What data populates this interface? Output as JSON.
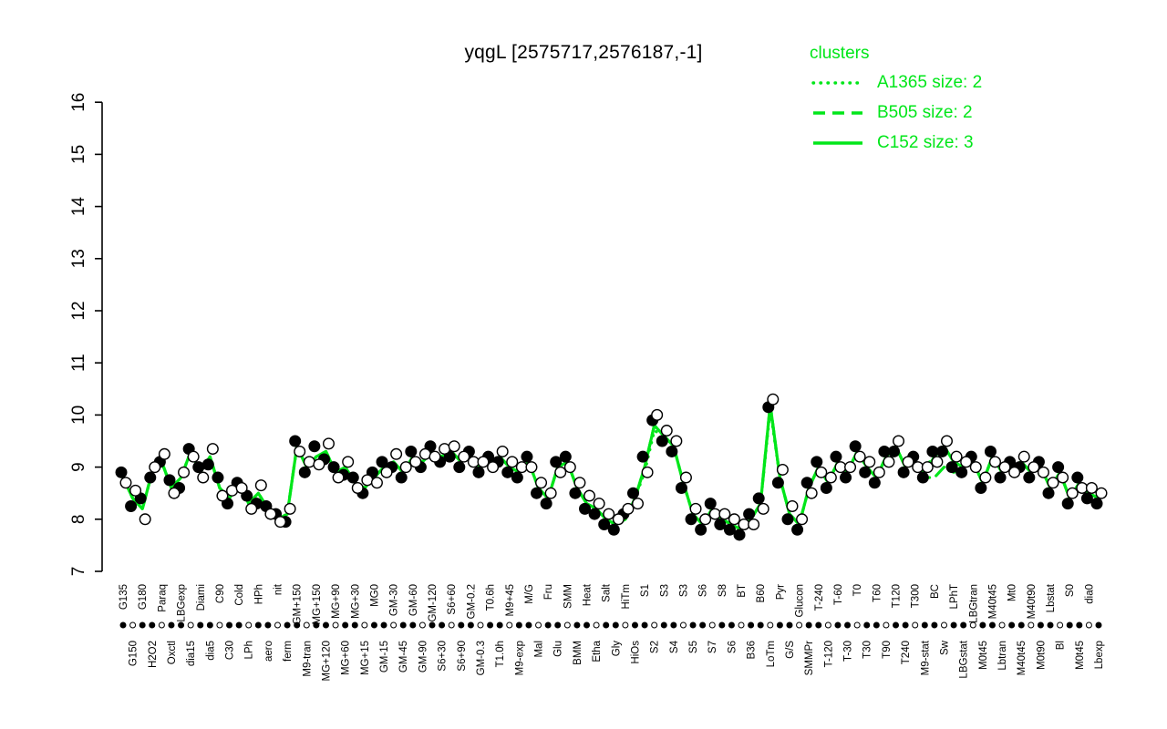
{
  "title": "yqgL [2575717,2576187,-1]",
  "colors": {
    "cluster_green": "#00E619",
    "point_filled": "#000000",
    "point_open_fill": "#ffffff",
    "axis": "#000000"
  },
  "legend": {
    "title": "clusters",
    "entries": [
      {
        "label": "A1365 size: 2",
        "style": "dotted"
      },
      {
        "label": "B505 size: 2",
        "style": "dashed"
      },
      {
        "label": "C152 size: 3",
        "style": "solid"
      }
    ]
  },
  "chart_data": {
    "type": "scatter",
    "title": "yqgL [2575717,2576187,-1]",
    "xlabel": "",
    "ylabel": "",
    "ylim": [
      7,
      16
    ],
    "yticks": [
      7,
      8,
      9,
      10,
      11,
      12,
      13,
      14,
      15,
      16
    ],
    "grid": false,
    "legend_position": "top-right",
    "categories": [
      "G135",
      "G150",
      "G180",
      "H2O2",
      "Paraq",
      "Oxctl",
      "LBGexp",
      "dia15",
      "Diami",
      "dia5",
      "C90",
      "C30",
      "Cold",
      "LPh",
      "HPh",
      "aero",
      "nit",
      "ferm",
      "GM+150",
      "M9-tran",
      "MG+150",
      "MG+120",
      "MG+90",
      "MG+60",
      "MG+30",
      "MG+15",
      "MG0",
      "GM-15",
      "GM-30",
      "GM-45",
      "GM-60",
      "GM-90",
      "GM-120",
      "S6+30",
      "S6+60",
      "S6+90",
      "GM-0.2",
      "GM-0.3",
      "T0.6h",
      "T1.0h",
      "M9+45",
      "M9-exp",
      "M/G",
      "Mal",
      "Fru",
      "Glu",
      "SMM",
      "BMM",
      "Heat",
      "Etha",
      "Salt",
      "Gly",
      "HiTm",
      "HiOs",
      "S1",
      "S2",
      "S3",
      "S4",
      "S3",
      "S5",
      "S6",
      "S7",
      "S8",
      "S6",
      "BT",
      "B36",
      "B60",
      "LoTm",
      "Pyr",
      "G/S",
      "Glucon",
      "SMMPr",
      "T-240",
      "T-120",
      "T-60",
      "T-30",
      "T0",
      "T30",
      "T60",
      "T90",
      "T120",
      "T240",
      "T300",
      "M9-stat",
      "BC",
      "Sw",
      "LPhT",
      "LBGstat",
      "LBGtran",
      "M0t45",
      "M40t45",
      "Lbtran",
      "Mt0",
      "M40t45",
      "M40t90",
      "M0t90",
      "Lbstat",
      "Bl",
      "S0",
      "M0t45",
      "dia0",
      "Lbexp"
    ],
    "series": [
      {
        "name": "A1365",
        "kind": "line",
        "style": "dotted",
        "color": "#00E619",
        "values": [
          8.8,
          8.4,
          8.2,
          8.9,
          9.1,
          8.6,
          8.8,
          9.3,
          8.9,
          9.2,
          8.6,
          8.4,
          8.7,
          8.3,
          8.5,
          8.2,
          8.0,
          8.1,
          9.4,
          9.0,
          9.2,
          9.3,
          8.9,
          9.0,
          8.7,
          8.6,
          8.8,
          9.0,
          9.1,
          8.9,
          9.2,
          9.1,
          9.3,
          9.2,
          9.3,
          9.1,
          9.2,
          9.0,
          9.1,
          9.2,
          9.0,
          8.9,
          9.1,
          8.6,
          8.4,
          9.0,
          9.1,
          8.6,
          8.3,
          8.2,
          8.0,
          7.9,
          8.0,
          8.4,
          8.9,
          9.7,
          9.6,
          9.4,
          8.7,
          8.1,
          7.9,
          8.2,
          8.0,
          7.9,
          7.8,
          8.0,
          8.3,
          10.1,
          8.8,
          8.1,
          7.9,
          8.6,
          9.0,
          8.7,
          9.1,
          8.9,
          9.3,
          9.0,
          8.8,
          9.2,
          9.4,
          9.0,
          9.1,
          8.9,
          9.3,
          9.4,
          9.1,
          9.0,
          9.1,
          8.7,
          9.2,
          8.9,
          9.0,
          9.1,
          8.9,
          9.0,
          8.6,
          8.9,
          8.4,
          8.7,
          8.5,
          8.4
        ]
      },
      {
        "name": "B505",
        "kind": "line",
        "style": "dashed",
        "color": "#00E619",
        "values": [
          8.8,
          8.4,
          8.2,
          8.9,
          9.1,
          8.6,
          8.8,
          9.3,
          8.9,
          9.2,
          8.6,
          8.4,
          8.7,
          8.3,
          8.5,
          8.2,
          8.0,
          8.1,
          9.4,
          9.0,
          9.2,
          9.3,
          8.9,
          9.0,
          8.7,
          8.6,
          8.8,
          9.0,
          9.1,
          8.9,
          9.2,
          9.1,
          9.3,
          9.2,
          9.3,
          9.1,
          9.2,
          9.0,
          9.1,
          9.2,
          9.0,
          8.9,
          9.1,
          8.6,
          8.4,
          9.0,
          9.1,
          8.6,
          8.3,
          8.2,
          8.0,
          7.9,
          8.0,
          8.4,
          9.0,
          9.8,
          9.6,
          9.4,
          8.7,
          8.1,
          7.9,
          8.2,
          8.0,
          7.9,
          7.8,
          8.0,
          8.3,
          10.2,
          8.8,
          8.1,
          7.9,
          8.6,
          9.0,
          8.7,
          9.1,
          8.9,
          9.3,
          9.0,
          8.8,
          9.2,
          9.4,
          9.0,
          9.1,
          8.8,
          8.8,
          9.0,
          8.9,
          9.0,
          9.1,
          8.7,
          9.2,
          8.9,
          9.0,
          9.1,
          8.9,
          9.0,
          8.6,
          8.9,
          8.4,
          8.7,
          8.5,
          8.4
        ]
      },
      {
        "name": "C152",
        "kind": "line",
        "style": "solid",
        "color": "#00E619",
        "values": [
          8.8,
          8.4,
          8.2,
          8.9,
          9.1,
          8.6,
          8.8,
          9.3,
          8.9,
          9.2,
          8.6,
          8.4,
          8.7,
          8.3,
          8.5,
          8.2,
          8.0,
          8.1,
          9.4,
          9.0,
          9.2,
          9.3,
          8.9,
          9.0,
          8.7,
          8.6,
          8.8,
          9.0,
          9.1,
          8.9,
          9.2,
          9.1,
          9.3,
          9.2,
          9.3,
          9.1,
          9.2,
          9.0,
          9.1,
          9.2,
          9.0,
          8.9,
          9.1,
          8.6,
          8.4,
          9.0,
          9.1,
          8.6,
          8.3,
          8.2,
          8.0,
          7.9,
          8.0,
          8.4,
          9.0,
          9.8,
          9.6,
          9.4,
          8.7,
          8.1,
          7.9,
          8.2,
          8.0,
          7.9,
          7.8,
          8.0,
          8.3,
          10.2,
          8.8,
          8.1,
          7.9,
          8.6,
          9.0,
          8.7,
          9.1,
          8.9,
          9.3,
          9.0,
          8.8,
          9.2,
          9.4,
          9.0,
          9.1,
          8.9,
          9.2,
          9.4,
          9.1,
          9.0,
          9.1,
          8.7,
          9.2,
          8.9,
          9.0,
          9.1,
          8.9,
          9.0,
          8.6,
          8.9,
          8.4,
          8.7,
          8.5,
          8.4
        ]
      },
      {
        "name": "replicates-filled",
        "kind": "points",
        "marker": "filled",
        "color": "#000000",
        "values": [
          8.9,
          8.25,
          8.4,
          8.8,
          9.1,
          8.75,
          8.6,
          9.35,
          9.0,
          9.05,
          8.8,
          8.3,
          8.7,
          8.45,
          8.3,
          8.25,
          8.1,
          7.95,
          9.5,
          8.9,
          9.4,
          9.15,
          9.0,
          8.85,
          8.8,
          8.5,
          8.9,
          9.1,
          9.0,
          8.8,
          9.3,
          9.0,
          9.4,
          9.1,
          9.2,
          9.0,
          9.3,
          8.9,
          9.2,
          9.1,
          8.9,
          8.8,
          9.2,
          8.5,
          8.3,
          9.1,
          9.2,
          8.5,
          8.2,
          8.1,
          7.9,
          7.8,
          8.1,
          8.5,
          9.2,
          9.9,
          9.5,
          9.3,
          8.6,
          8.0,
          7.8,
          8.3,
          7.9,
          7.8,
          7.7,
          8.1,
          8.4,
          10.15,
          8.7,
          8.0,
          7.8,
          8.7,
          9.1,
          8.6,
          9.2,
          8.8,
          9.4,
          8.9,
          8.7,
          9.3,
          9.3,
          8.9,
          9.2,
          8.8,
          9.3,
          9.3,
          9.0,
          8.9,
          9.2,
          8.6,
          9.3,
          8.8,
          9.1,
          9.0,
          8.8,
          9.1,
          8.5,
          9.0,
          8.3,
          8.8,
          8.4,
          8.3
        ]
      },
      {
        "name": "replicates-open",
        "kind": "points",
        "marker": "open",
        "color": "#ffffff",
        "values": [
          8.7,
          8.55,
          8.0,
          9.0,
          9.25,
          8.5,
          8.9,
          9.2,
          8.8,
          9.35,
          8.45,
          8.55,
          8.6,
          8.2,
          8.65,
          8.1,
          7.95,
          8.2,
          9.3,
          9.1,
          9.05,
          9.45,
          8.8,
          9.1,
          8.6,
          8.75,
          8.7,
          8.9,
          9.25,
          9.0,
          9.1,
          9.25,
          9.2,
          9.35,
          9.4,
          9.2,
          9.1,
          9.1,
          9.0,
          9.3,
          9.1,
          9.0,
          9.0,
          8.7,
          8.5,
          8.9,
          9.0,
          8.7,
          8.45,
          8.3,
          8.1,
          8.0,
          8.2,
          8.3,
          8.9,
          10.0,
          9.7,
          9.5,
          8.8,
          8.2,
          8.0,
          8.1,
          8.1,
          8.0,
          7.9,
          7.9,
          8.2,
          10.3,
          8.95,
          8.25,
          8.0,
          8.5,
          8.9,
          8.8,
          9.0,
          9.0,
          9.2,
          9.1,
          8.9,
          9.1,
          9.5,
          9.1,
          9.0,
          9.0,
          9.1,
          9.5,
          9.2,
          9.1,
          9.0,
          8.8,
          9.1,
          9.0,
          8.9,
          9.2,
          9.0,
          8.9,
          8.7,
          8.8,
          8.5,
          8.6,
          8.6,
          8.5
        ]
      }
    ]
  }
}
